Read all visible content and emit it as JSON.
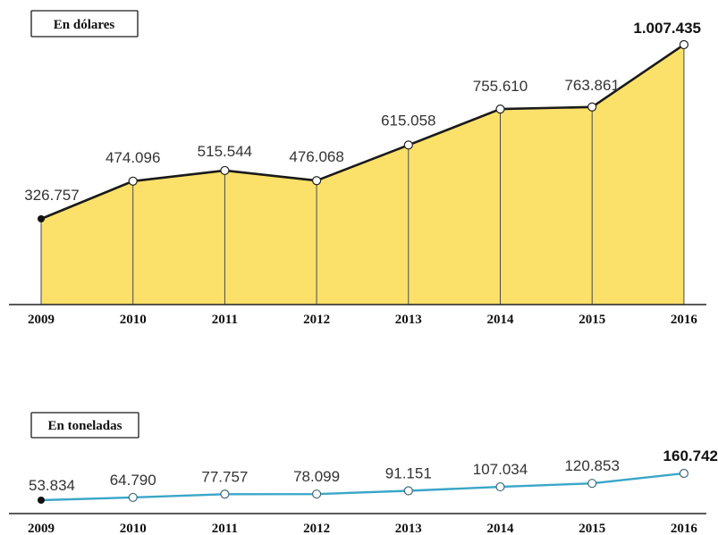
{
  "colors": {
    "area_fill": "#fbe16a",
    "usd_line": "#1a1a1a",
    "ton_line": "#3aa6c8",
    "baseline": "#222222"
  },
  "chart_data": [
    {
      "type": "area",
      "title": "En dólares",
      "x": [
        "2009",
        "2010",
        "2011",
        "2012",
        "2013",
        "2014",
        "2015",
        "2016"
      ],
      "values": [
        326757,
        474096,
        515544,
        476068,
        615058,
        755610,
        763861,
        1007435
      ],
      "labels": [
        "326.757",
        "474.096",
        "515.544",
        "476.068",
        "615.058",
        "755.610",
        "763.861",
        "1.007.435"
      ],
      "ylim": [
        0,
        1007435
      ]
    },
    {
      "type": "line",
      "title": "En toneladas",
      "x": [
        "2009",
        "2010",
        "2011",
        "2012",
        "2013",
        "2014",
        "2015",
        "2016"
      ],
      "values": [
        53834,
        64790,
        77757,
        78099,
        91151,
        107034,
        120853,
        160742
      ],
      "labels": [
        "53.834",
        "64.790",
        "77.757",
        "78.099",
        "91.151",
        "107.034",
        "120.853",
        "160.742"
      ]
    }
  ]
}
